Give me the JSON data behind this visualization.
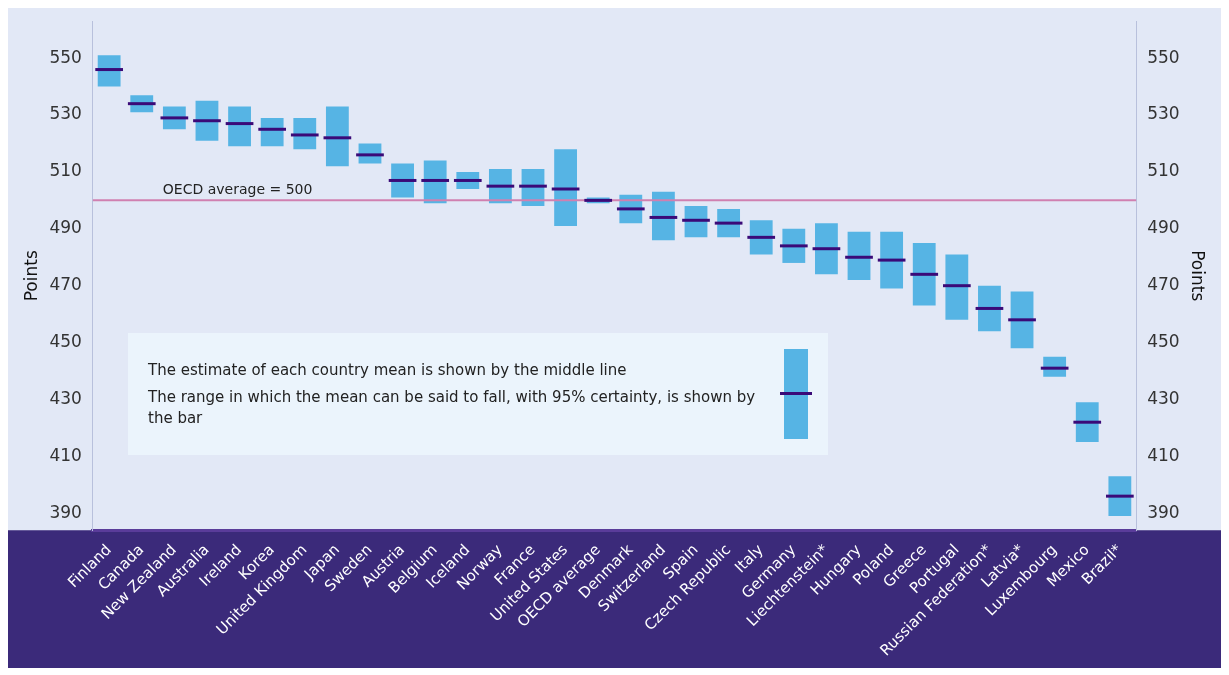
{
  "chart_data": {
    "type": "box",
    "categories": [
      "Finland",
      "Canada",
      "New Zealand",
      "Australia",
      "Ireland",
      "Korea",
      "United Kingdom",
      "Japan",
      "Sweden",
      "Austria",
      "Belgium",
      "Iceland",
      "Norway",
      "France",
      "United States",
      "OECD average",
      "Denmark",
      "Switzerland",
      "Spain",
      "Czech Republic",
      "Italy",
      "Germany",
      "Liechtenstein*",
      "Hungary",
      "Poland",
      "Greece",
      "Portugal",
      "Russian Federation*",
      "Latvia*",
      "Luxembourg",
      "Mexico",
      "Brazil*"
    ],
    "series": [
      {
        "color": "#56b4e4",
        "boxes": [
          {
            "low": 540,
            "q1": 540,
            "median": 546,
            "q3": 551,
            "high": 551
          },
          {
            "low": 531,
            "q1": 531,
            "median": 534,
            "q3": 537,
            "high": 537
          },
          {
            "low": 525,
            "q1": 525,
            "median": 529,
            "q3": 533,
            "high": 533
          },
          {
            "low": 521,
            "q1": 521,
            "median": 528,
            "q3": 535,
            "high": 535
          },
          {
            "low": 519,
            "q1": 519,
            "median": 527,
            "q3": 533,
            "high": 533
          },
          {
            "low": 519,
            "q1": 519,
            "median": 525,
            "q3": 529,
            "high": 529
          },
          {
            "low": 518,
            "q1": 518,
            "median": 523,
            "q3": 529,
            "high": 529
          },
          {
            "low": 512,
            "q1": 512,
            "median": 522,
            "q3": 533,
            "high": 533
          },
          {
            "low": 513,
            "q1": 513,
            "median": 516,
            "q3": 520,
            "high": 520
          },
          {
            "low": 501,
            "q1": 501,
            "median": 507,
            "q3": 513,
            "high": 513
          },
          {
            "low": 499,
            "q1": 499,
            "median": 507,
            "q3": 514,
            "high": 514
          },
          {
            "low": 504,
            "q1": 504,
            "median": 507,
            "q3": 510,
            "high": 510
          },
          {
            "low": 499,
            "q1": 499,
            "median": 505,
            "q3": 511,
            "high": 511
          },
          {
            "low": 498,
            "q1": 498,
            "median": 505,
            "q3": 511,
            "high": 511
          },
          {
            "low": 491,
            "q1": 491,
            "median": 504,
            "q3": 518,
            "high": 518
          },
          {
            "low": 499,
            "q1": 499,
            "median": 500,
            "q3": 501,
            "high": 501
          },
          {
            "low": 492,
            "q1": 492,
            "median": 497,
            "q3": 502,
            "high": 502
          },
          {
            "low": 486,
            "q1": 486,
            "median": 494,
            "q3": 503,
            "high": 503
          },
          {
            "low": 487,
            "q1": 487,
            "median": 493,
            "q3": 498,
            "high": 498
          },
          {
            "low": 487,
            "q1": 487,
            "median": 492,
            "q3": 497,
            "high": 497
          },
          {
            "low": 481,
            "q1": 481,
            "median": 487,
            "q3": 493,
            "high": 493
          },
          {
            "low": 478,
            "q1": 478,
            "median": 484,
            "q3": 490,
            "high": 490
          },
          {
            "low": 474,
            "q1": 474,
            "median": 483,
            "q3": 492,
            "high": 492
          },
          {
            "low": 472,
            "q1": 472,
            "median": 480,
            "q3": 489,
            "high": 489
          },
          {
            "low": 469,
            "q1": 469,
            "median": 479,
            "q3": 489,
            "high": 489
          },
          {
            "low": 463,
            "q1": 463,
            "median": 474,
            "q3": 485,
            "high": 485
          },
          {
            "low": 458,
            "q1": 458,
            "median": 470,
            "q3": 481,
            "high": 481
          },
          {
            "low": 454,
            "q1": 454,
            "median": 462,
            "q3": 470,
            "high": 470
          },
          {
            "low": 448,
            "q1": 448,
            "median": 458,
            "q3": 468,
            "high": 468
          },
          {
            "low": 438,
            "q1": 438,
            "median": 441,
            "q3": 445,
            "high": 445
          },
          {
            "low": 415,
            "q1": 415,
            "median": 422,
            "q3": 429,
            "high": 429
          },
          {
            "low": 389,
            "q1": 389,
            "median": 396,
            "q3": 403,
            "high": 403
          }
        ]
      }
    ],
    "ylabel": "Points",
    "y2label": "Points",
    "ylim": [
      384,
      563
    ],
    "yticks": [
      390,
      410,
      430,
      450,
      470,
      490,
      510,
      530,
      550
    ],
    "y2lim": [
      384,
      563
    ],
    "y2ticks": [
      390,
      410,
      430,
      450,
      470,
      490,
      510,
      530,
      550
    ],
    "ref_lines": [
      {
        "axis": "y",
        "value": 500,
        "label": "OECD average = 500",
        "color": "#d080b0"
      }
    ],
    "annotations": [
      "The estimate of each country mean is shown by the middle line",
      "The range in which the mean can be said to fall, with 95% certainty, is shown by the bar"
    ],
    "grid": false,
    "legend": false
  }
}
